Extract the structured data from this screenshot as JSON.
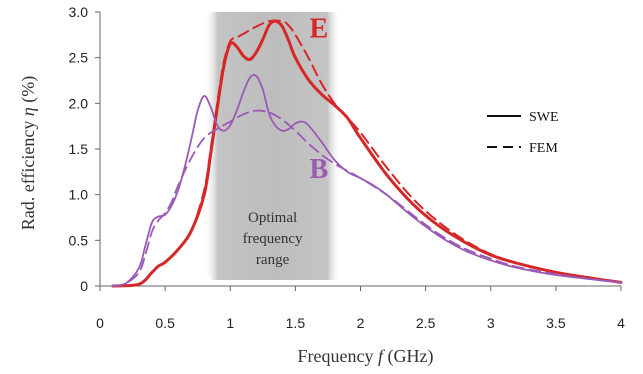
{
  "chart_data": {
    "type": "line",
    "xlabel": {
      "prefix": "Frequency ",
      "var": "f",
      "suffix": " (GHz)"
    },
    "ylabel": {
      "prefix": "Rad. efficiency ",
      "var": "η",
      "suffix": " (%)"
    },
    "xlim": [
      0,
      4
    ],
    "ylim": [
      0,
      3
    ],
    "xticks": [
      0,
      0.5,
      1,
      1.5,
      2,
      2.5,
      3,
      3.5,
      4
    ],
    "xtick_labels": [
      "0",
      "0.5",
      "1",
      "1.5",
      "2",
      "2.5",
      "3",
      "3.5",
      "4"
    ],
    "yticks": [
      0,
      0.5,
      1,
      1.5,
      2,
      2.5,
      3
    ],
    "ytick_labels": [
      "0",
      "0.5",
      "1.0",
      "1.5",
      "2.0",
      "2.5",
      "3.0"
    ],
    "grid": false,
    "band": {
      "x": [
        0.8,
        1.85
      ],
      "lines": [
        "Optimal",
        "frequency",
        "range"
      ],
      "color": "#bfbfbf"
    },
    "legend": {
      "placement": "right",
      "entries": [
        {
          "label": "SWE",
          "style": "solid"
        },
        {
          "label": "FEM",
          "style": "dashed"
        }
      ]
    },
    "series_labels": [
      {
        "text": "E",
        "color": "#d62728",
        "x": 1.68,
        "y": 2.72
      },
      {
        "text": "B",
        "color": "#9b59b6",
        "x": 1.68,
        "y": 1.18
      }
    ],
    "series": [
      {
        "label": "E",
        "method": "SWE",
        "style": "solid",
        "color": "#d62728",
        "width": 3,
        "x": [
          0.1,
          0.3,
          0.4,
          0.45,
          0.5,
          0.6,
          0.7,
          0.8,
          0.85,
          0.9,
          0.95,
          1.0,
          1.05,
          1.1,
          1.15,
          1.2,
          1.25,
          1.3,
          1.35,
          1.4,
          1.45,
          1.5,
          1.6,
          1.7,
          1.8,
          1.9,
          2.0,
          2.2,
          2.4,
          2.6,
          2.8,
          3.0,
          3.2,
          3.5,
          3.8,
          4.0
        ],
        "y": [
          0,
          0.02,
          0.15,
          0.22,
          0.26,
          0.4,
          0.6,
          1.0,
          1.45,
          1.95,
          2.4,
          2.65,
          2.62,
          2.52,
          2.48,
          2.56,
          2.7,
          2.86,
          2.9,
          2.84,
          2.68,
          2.5,
          2.26,
          2.1,
          1.98,
          1.84,
          1.62,
          1.22,
          0.9,
          0.66,
          0.48,
          0.34,
          0.25,
          0.15,
          0.08,
          0.04
        ]
      },
      {
        "label": "E",
        "method": "FEM",
        "style": "dashed",
        "color": "#d62728",
        "width": 2,
        "x": [
          0.1,
          0.3,
          0.4,
          0.45,
          0.5,
          0.6,
          0.7,
          0.8,
          0.85,
          0.9,
          0.95,
          1.0,
          1.05,
          1.1,
          1.2,
          1.3,
          1.4,
          1.45,
          1.5,
          1.6,
          1.7,
          1.8,
          1.9,
          2.0,
          2.2,
          2.4,
          2.6,
          2.8,
          3.0,
          3.2,
          3.5,
          3.8,
          4.0
        ],
        "y": [
          0,
          0.02,
          0.15,
          0.22,
          0.26,
          0.4,
          0.6,
          1.05,
          1.5,
          2.0,
          2.45,
          2.68,
          2.72,
          2.76,
          2.84,
          2.9,
          2.9,
          2.85,
          2.75,
          2.5,
          2.22,
          2.0,
          1.84,
          1.68,
          1.3,
          0.96,
          0.7,
          0.5,
          0.35,
          0.25,
          0.15,
          0.08,
          0.04
        ]
      },
      {
        "label": "B",
        "method": "SWE",
        "style": "solid",
        "color": "#9b59b6",
        "width": 1.8,
        "x": [
          0.1,
          0.2,
          0.3,
          0.35,
          0.4,
          0.45,
          0.5,
          0.55,
          0.6,
          0.65,
          0.7,
          0.75,
          0.8,
          0.85,
          0.9,
          0.95,
          1.0,
          1.05,
          1.1,
          1.15,
          1.2,
          1.25,
          1.3,
          1.35,
          1.4,
          1.45,
          1.5,
          1.55,
          1.6,
          1.7,
          1.8,
          1.9,
          2.0,
          2.1,
          2.2,
          2.4,
          2.6,
          2.8,
          3.0,
          3.2,
          3.5,
          3.8,
          4.0
        ],
        "y": [
          0,
          0.03,
          0.2,
          0.45,
          0.7,
          0.76,
          0.78,
          0.88,
          1.05,
          1.3,
          1.6,
          1.92,
          2.08,
          1.96,
          1.76,
          1.7,
          1.76,
          1.92,
          2.12,
          2.28,
          2.3,
          2.15,
          1.88,
          1.75,
          1.7,
          1.72,
          1.78,
          1.8,
          1.76,
          1.58,
          1.38,
          1.25,
          1.18,
          1.1,
          1.0,
          0.76,
          0.55,
          0.39,
          0.28,
          0.2,
          0.12,
          0.07,
          0.04
        ]
      },
      {
        "label": "B",
        "method": "FEM",
        "style": "dashed",
        "color": "#9b59b6",
        "width": 1.8,
        "x": [
          0.1,
          0.2,
          0.3,
          0.35,
          0.4,
          0.45,
          0.5,
          0.55,
          0.6,
          0.7,
          0.8,
          0.9,
          1.0,
          1.1,
          1.2,
          1.3,
          1.4,
          1.5,
          1.6,
          1.7,
          1.8,
          1.9,
          2.0,
          2.2,
          2.4,
          2.6,
          2.8,
          3.0,
          3.2,
          3.5,
          3.8,
          4.0
        ],
        "y": [
          0,
          0.03,
          0.15,
          0.35,
          0.6,
          0.72,
          0.8,
          0.92,
          1.1,
          1.4,
          1.62,
          1.72,
          1.8,
          1.88,
          1.92,
          1.9,
          1.82,
          1.7,
          1.56,
          1.44,
          1.34,
          1.26,
          1.18,
          1.0,
          0.78,
          0.57,
          0.41,
          0.3,
          0.21,
          0.13,
          0.07,
          0.04
        ]
      }
    ]
  }
}
